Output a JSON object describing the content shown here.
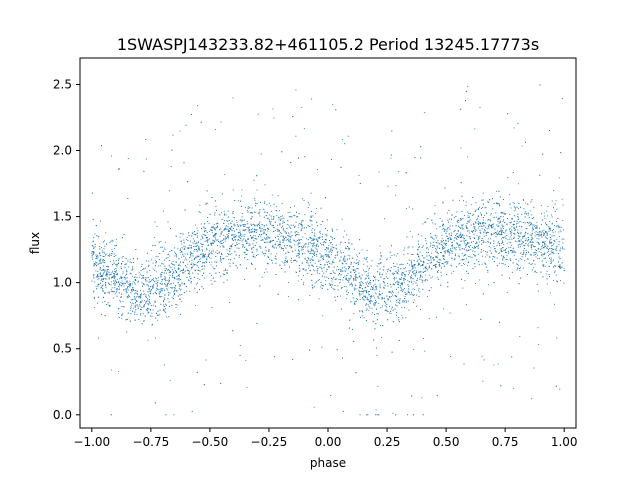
{
  "chart_data": {
    "type": "scatter",
    "title": "1SWASPJ143233.82+461105.2 Period 13245.17773s",
    "xlabel": "phase",
    "ylabel": "flux",
    "xlim": [
      -1.05,
      1.05
    ],
    "ylim": [
      -0.1,
      2.7
    ],
    "xticks": [
      -1.0,
      -0.75,
      -0.5,
      -0.25,
      0.0,
      0.25,
      0.5,
      0.75,
      1.0
    ],
    "xtick_labels": [
      "−1.00",
      "−0.75",
      "−0.50",
      "−0.25",
      "0.00",
      "0.25",
      "0.50",
      "0.75",
      "1.00"
    ],
    "yticks": [
      0.0,
      0.5,
      1.0,
      1.5,
      2.0,
      2.5
    ],
    "ytick_labels": [
      "0.0",
      "0.5",
      "1.0",
      "1.5",
      "2.0",
      "2.5"
    ],
    "grid": false,
    "marker_color": "#1f77b4",
    "series": [
      {
        "x": [
          -1.0,
          -0.9,
          -0.8,
          -0.7,
          -0.6,
          -0.5,
          -0.4,
          -0.3,
          -0.2,
          -0.1,
          0.0,
          0.1,
          0.2,
          0.3,
          0.4,
          0.5,
          0.6,
          0.7,
          0.8,
          0.9,
          1.0
        ],
        "y": [
          1.12,
          1.05,
          0.92,
          0.98,
          1.15,
          1.28,
          1.35,
          1.38,
          1.35,
          1.3,
          1.18,
          1.05,
          0.9,
          1.0,
          1.15,
          1.28,
          1.35,
          1.38,
          1.34,
          1.3,
          1.22
        ]
      }
    ]
  }
}
